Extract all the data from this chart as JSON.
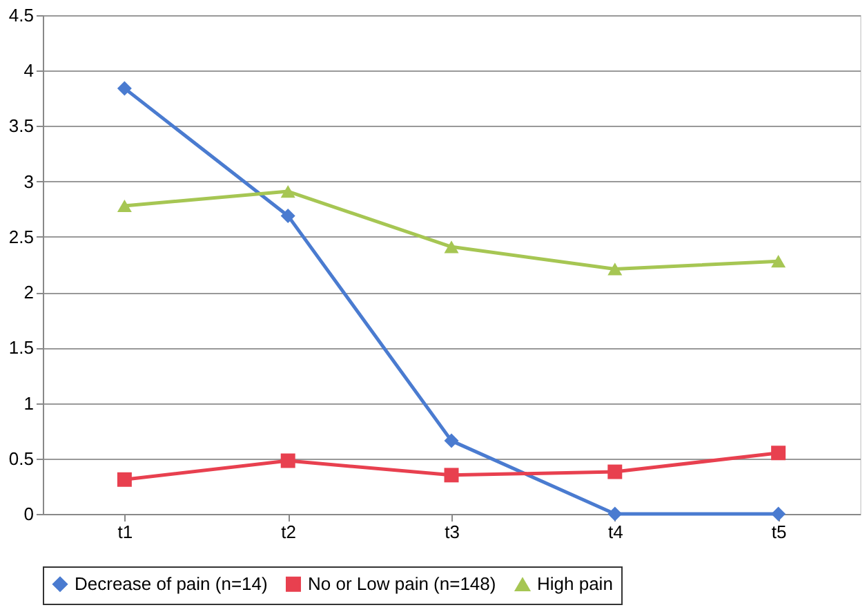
{
  "chart_data": {
    "type": "line",
    "categories": [
      "t1",
      "t2",
      "t3",
      "t4",
      "t5"
    ],
    "series": [
      {
        "name": "Decrease of pain (n=14)",
        "color": "#4a7bd0",
        "marker": "diamond",
        "values": [
          3.84,
          2.69,
          0.66,
          0,
          0
        ]
      },
      {
        "name": "No or Low pain (n=148)",
        "color": "#e8404f",
        "marker": "square",
        "values": [
          0.31,
          0.48,
          0.35,
          0.38,
          0.55
        ]
      },
      {
        "name": "High pain",
        "color": "#a6c653",
        "marker": "triangle",
        "values": [
          2.78,
          2.91,
          2.41,
          2.21,
          2.28
        ]
      }
    ],
    "ylim": [
      0,
      4.5
    ],
    "yticks": [
      0,
      0.5,
      1,
      1.5,
      2,
      2.5,
      3,
      3.5,
      4,
      4.5
    ],
    "grid": "y",
    "legend": "bottom",
    "line_style": "solid"
  }
}
